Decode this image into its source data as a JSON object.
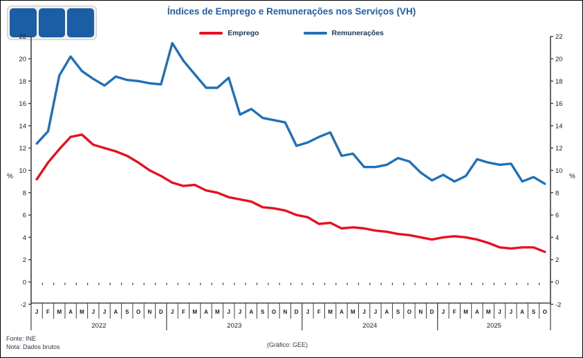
{
  "title": "Índices de Emprego e Remunerações nos Serviços (VH)",
  "legend": [
    {
      "label": "Emprego",
      "color": "#e8101e"
    },
    {
      "label": "Remunerações",
      "color": "#1f70b8"
    }
  ],
  "footer": {
    "source_line1": "Fonte: INE",
    "source_line2": "Nota: Dados brutos",
    "credit": "(Gráfico: GEE)"
  },
  "logo": {
    "name": "three-blue-squares-logo",
    "color": "#1b5ea6"
  },
  "colors": {
    "title_blue": "#1e5fac",
    "axis": "#404040",
    "tick_label": "#1a1a1a",
    "emprego_red": "#e8101e",
    "remuneracoes_blue": "#1f70b8"
  },
  "chart_data": {
    "type": "line",
    "title": "Índices de Emprego e Remunerações nos Serviços (VH)",
    "ylabel_left": "%",
    "ylabel_right": "%",
    "ylim": [
      -2,
      22
    ],
    "ytick_step": 2,
    "grid": false,
    "legend_position": "top-center",
    "years": [
      {
        "label": "2022",
        "months": 12
      },
      {
        "label": "2023",
        "months": 12
      },
      {
        "label": "2024",
        "months": 12
      },
      {
        "label": "2025",
        "months": 10
      }
    ],
    "month_letters": [
      "J",
      "F",
      "M",
      "A",
      "M",
      "J",
      "J",
      "A",
      "S",
      "O",
      "N",
      "D",
      "J",
      "F",
      "M",
      "A",
      "M",
      "J",
      "J",
      "A",
      "S",
      "O",
      "N",
      "D",
      "J",
      "F",
      "M",
      "A",
      "M",
      "J",
      "J",
      "A",
      "S",
      "O",
      "N",
      "D",
      "J",
      "F",
      "M",
      "A",
      "M",
      "J",
      "J",
      "A",
      "S",
      "O"
    ],
    "series": [
      {
        "name": "Emprego",
        "color": "#e8101e",
        "values": [
          9.2,
          10.7,
          11.9,
          13.0,
          13.2,
          12.3,
          12.0,
          11.7,
          11.3,
          10.7,
          10.0,
          9.5,
          8.9,
          8.6,
          8.7,
          8.2,
          8.0,
          7.6,
          7.4,
          7.2,
          6.7,
          6.6,
          6.4,
          6.0,
          5.8,
          5.2,
          5.3,
          4.8,
          4.9,
          4.8,
          4.6,
          4.5,
          4.3,
          4.2,
          4.0,
          3.8,
          4.0,
          4.1,
          4.0,
          3.8,
          3.5,
          3.1,
          3.0,
          3.1,
          3.1,
          2.7
        ]
      },
      {
        "name": "Remunerações",
        "color": "#1f70b8",
        "values": [
          12.4,
          13.5,
          18.5,
          20.2,
          18.9,
          18.2,
          17.6,
          18.4,
          18.1,
          18.0,
          17.8,
          17.7,
          21.4,
          19.8,
          18.6,
          17.4,
          17.4,
          18.3,
          15.0,
          15.5,
          14.7,
          14.5,
          14.3,
          12.2,
          12.5,
          13.0,
          13.4,
          11.3,
          11.5,
          10.3,
          10.3,
          10.5,
          11.1,
          10.8,
          9.8,
          9.1,
          9.6,
          9.0,
          9.5,
          11.0,
          10.7,
          10.5,
          10.6,
          9.0,
          9.4,
          8.8
        ]
      }
    ]
  }
}
